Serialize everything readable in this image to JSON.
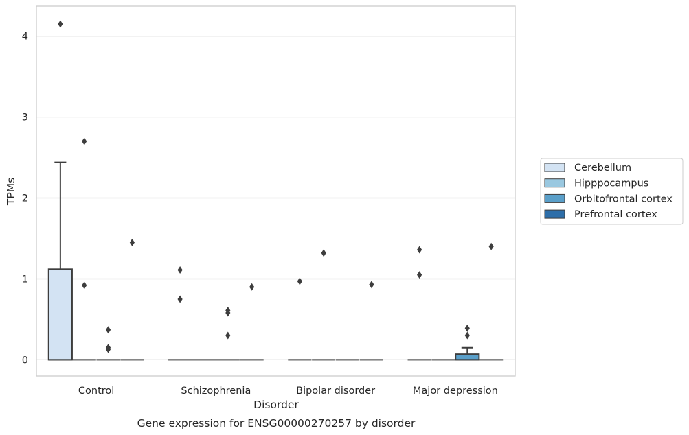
{
  "chart_data": {
    "type": "box",
    "title": "Gene expression for ENSG00000270257 by disorder",
    "xlabel": "Disorder",
    "ylabel": "TPMs",
    "ylim": [
      -0.2,
      4.37
    ],
    "yticks": [
      0,
      1,
      2,
      3,
      4
    ],
    "grid": "horizontal",
    "legend_position": "right",
    "categories": [
      "Control",
      "Schizophrenia",
      "Bipolar disorder",
      "Major depression"
    ],
    "series": [
      {
        "name": "Cerebellum",
        "color": "#d3e3f3",
        "boxes": [
          {
            "q1": 0,
            "median": 0,
            "q3": 1.12,
            "whisker_low": 0,
            "whisker_high": 2.44,
            "outliers": [
              4.15
            ]
          },
          {
            "q1": 0,
            "median": 0,
            "q3": 0,
            "whisker_low": 0,
            "whisker_high": 0,
            "outliers": [
              1.11,
              0.75
            ]
          },
          {
            "q1": 0,
            "median": 0,
            "q3": 0,
            "whisker_low": 0,
            "whisker_high": 0,
            "outliers": [
              0.97
            ]
          },
          {
            "q1": 0,
            "median": 0,
            "q3": 0,
            "whisker_low": 0,
            "whisker_high": 0,
            "outliers": [
              1.36,
              1.05
            ]
          }
        ]
      },
      {
        "name": "Hipppocampus",
        "color": "#9ac8e0",
        "boxes": [
          {
            "q1": 0,
            "median": 0,
            "q3": 0,
            "whisker_low": 0,
            "whisker_high": 0,
            "outliers": [
              2.7,
              0.92
            ]
          },
          {
            "q1": 0,
            "median": 0,
            "q3": 0,
            "whisker_low": 0,
            "whisker_high": 0,
            "outliers": []
          },
          {
            "q1": 0,
            "median": 0,
            "q3": 0,
            "whisker_low": 0,
            "whisker_high": 0,
            "outliers": [
              1.32
            ]
          },
          {
            "q1": 0,
            "median": 0,
            "q3": 0,
            "whisker_low": 0,
            "whisker_high": 0,
            "outliers": []
          }
        ]
      },
      {
        "name": "Orbitofrontal cortex",
        "color": "#5a9fc9",
        "boxes": [
          {
            "q1": 0,
            "median": 0,
            "q3": 0,
            "whisker_low": 0,
            "whisker_high": 0,
            "outliers": [
              0.37,
              0.15,
              0.13
            ]
          },
          {
            "q1": 0,
            "median": 0,
            "q3": 0,
            "whisker_low": 0,
            "whisker_high": 0,
            "outliers": [
              0.61,
              0.58,
              0.3
            ]
          },
          {
            "q1": 0,
            "median": 0,
            "q3": 0,
            "whisker_low": 0,
            "whisker_high": 0,
            "outliers": []
          },
          {
            "q1": 0,
            "median": 0,
            "q3": 0.07,
            "whisker_low": 0,
            "whisker_high": 0.15,
            "outliers": [
              0.39,
              0.3
            ]
          }
        ]
      },
      {
        "name": "Prefrontal cortex",
        "color": "#2d6ea9",
        "boxes": [
          {
            "q1": 0,
            "median": 0,
            "q3": 0,
            "whisker_low": 0,
            "whisker_high": 0,
            "outliers": [
              1.45
            ]
          },
          {
            "q1": 0,
            "median": 0,
            "q3": 0,
            "whisker_low": 0,
            "whisker_high": 0,
            "outliers": [
              0.9
            ]
          },
          {
            "q1": 0,
            "median": 0,
            "q3": 0,
            "whisker_low": 0,
            "whisker_high": 0,
            "outliers": [
              0.93
            ]
          },
          {
            "q1": 0,
            "median": 0,
            "q3": 0,
            "whisker_low": 0,
            "whisker_high": 0,
            "outliers": [
              1.4
            ]
          }
        ]
      }
    ]
  }
}
